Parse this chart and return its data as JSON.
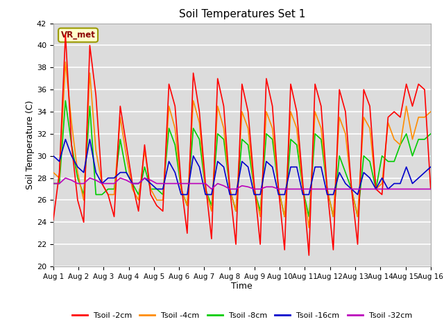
{
  "title": "Soil Temperatures Set 1",
  "xlabel": "Time",
  "ylabel": "Soil Temperature (C)",
  "ylim": [
    20,
    42
  ],
  "xlim": [
    0,
    15
  ],
  "xtick_labels": [
    "Aug 1",
    "Aug 2",
    "Aug 3",
    "Aug 4",
    "Aug 5",
    "Aug 6",
    "Aug 7",
    "Aug 8",
    "Aug 9",
    "Aug 10",
    "Aug 11",
    "Aug 12",
    "Aug 13",
    "Aug 14",
    "Aug 15",
    "Aug 16"
  ],
  "ytick_values": [
    20,
    22,
    24,
    26,
    28,
    30,
    32,
    34,
    36,
    38,
    40,
    42
  ],
  "station_label": "VR_met",
  "colors": {
    "red": "#FF0000",
    "orange": "#FF8C00",
    "green": "#00CC00",
    "blue": "#0000CC",
    "purple": "#BB00BB"
  },
  "legend": [
    "Tsoil -2cm",
    "Tsoil -4cm",
    "Tsoil -8cm",
    "Tsoil -16cm",
    "Tsoil -32cm"
  ],
  "plot_bg_color": "#DCDCDC",
  "fig_bg_color": "#FFFFFF",
  "grid_color": "#FFFFFF",
  "t2cm": [
    24.2,
    28.5,
    41.0,
    31.0,
    26.0,
    24.0,
    40.0,
    35.5,
    27.5,
    26.5,
    24.5,
    34.5,
    31.0,
    27.5,
    25.0,
    31.0,
    26.5,
    25.5,
    25.0,
    36.5,
    34.5,
    27.5,
    23.0,
    37.5,
    34.0,
    27.5,
    22.5,
    37.0,
    34.5,
    27.0,
    22.0,
    36.5,
    34.0,
    27.5,
    22.0,
    37.0,
    34.5,
    27.0,
    21.5,
    36.5,
    34.0,
    27.5,
    21.0,
    36.5,
    34.5,
    27.0,
    21.5,
    36.0,
    34.0,
    27.0,
    22.0,
    36.0,
    34.5,
    27.0,
    26.5,
    33.5,
    34.0,
    33.5,
    36.5,
    34.5,
    36.5,
    36.0,
    27.0
  ],
  "t4cm": [
    28.5,
    28.0,
    38.5,
    33.0,
    28.5,
    26.0,
    37.5,
    30.5,
    27.5,
    26.5,
    26.5,
    33.5,
    30.0,
    27.0,
    26.0,
    30.5,
    27.0,
    26.0,
    26.0,
    34.5,
    32.5,
    27.0,
    25.5,
    35.0,
    33.0,
    27.0,
    25.0,
    34.5,
    32.5,
    27.0,
    25.0,
    34.0,
    32.5,
    27.0,
    24.5,
    34.0,
    32.5,
    27.0,
    24.5,
    34.0,
    32.5,
    27.0,
    23.5,
    34.0,
    32.5,
    27.0,
    24.5,
    33.5,
    32.0,
    27.0,
    24.5,
    33.5,
    32.5,
    27.0,
    27.5,
    33.0,
    31.5,
    31.0,
    34.5,
    31.5,
    33.5,
    33.5,
    34.0
  ],
  "t8cm": [
    27.5,
    27.5,
    35.0,
    31.0,
    28.0,
    26.5,
    34.5,
    26.5,
    26.5,
    27.0,
    27.0,
    31.5,
    28.5,
    27.5,
    26.5,
    29.0,
    27.0,
    27.0,
    26.5,
    32.5,
    31.0,
    27.0,
    25.5,
    32.5,
    31.5,
    27.0,
    25.5,
    32.0,
    31.5,
    27.0,
    25.0,
    31.5,
    31.0,
    27.0,
    25.0,
    32.0,
    31.5,
    27.0,
    24.5,
    31.5,
    31.0,
    27.0,
    24.5,
    32.0,
    31.5,
    27.0,
    24.5,
    30.0,
    28.5,
    27.0,
    24.5,
    30.0,
    29.5,
    27.0,
    30.0,
    29.5,
    29.5,
    31.0,
    32.0,
    30.0,
    31.5,
    31.5,
    32.0
  ],
  "t16cm": [
    30.0,
    29.5,
    31.5,
    30.0,
    29.0,
    28.5,
    31.5,
    28.5,
    27.5,
    28.0,
    28.0,
    28.5,
    28.5,
    27.5,
    27.5,
    28.0,
    27.5,
    27.0,
    27.0,
    29.5,
    28.5,
    26.5,
    26.5,
    30.0,
    29.0,
    26.5,
    26.5,
    29.5,
    29.0,
    26.5,
    26.5,
    29.5,
    29.0,
    26.5,
    26.5,
    29.5,
    29.0,
    26.5,
    26.5,
    29.0,
    29.0,
    26.5,
    26.5,
    29.0,
    29.0,
    26.5,
    26.5,
    28.5,
    27.5,
    27.0,
    26.5,
    28.5,
    28.0,
    27.0,
    28.0,
    27.0,
    27.5,
    27.5,
    29.0,
    27.5,
    28.0,
    28.5,
    29.0
  ],
  "t32cm": [
    27.5,
    27.5,
    28.0,
    27.8,
    27.5,
    27.5,
    28.0,
    27.8,
    27.5,
    27.5,
    27.5,
    28.0,
    27.8,
    27.5,
    27.5,
    28.0,
    27.8,
    27.5,
    27.5,
    27.5,
    27.5,
    27.5,
    27.5,
    27.5,
    27.5,
    27.5,
    27.0,
    27.5,
    27.3,
    27.0,
    27.0,
    27.3,
    27.2,
    27.0,
    27.0,
    27.2,
    27.2,
    27.0,
    27.0,
    27.0,
    27.0,
    27.0,
    27.0,
    27.0,
    27.0,
    27.0,
    27.0,
    27.0,
    27.0,
    27.0,
    27.0,
    27.0,
    27.0,
    27.0,
    27.0,
    27.0,
    27.0,
    27.0,
    27.0,
    27.0,
    27.0,
    27.0,
    27.0
  ]
}
